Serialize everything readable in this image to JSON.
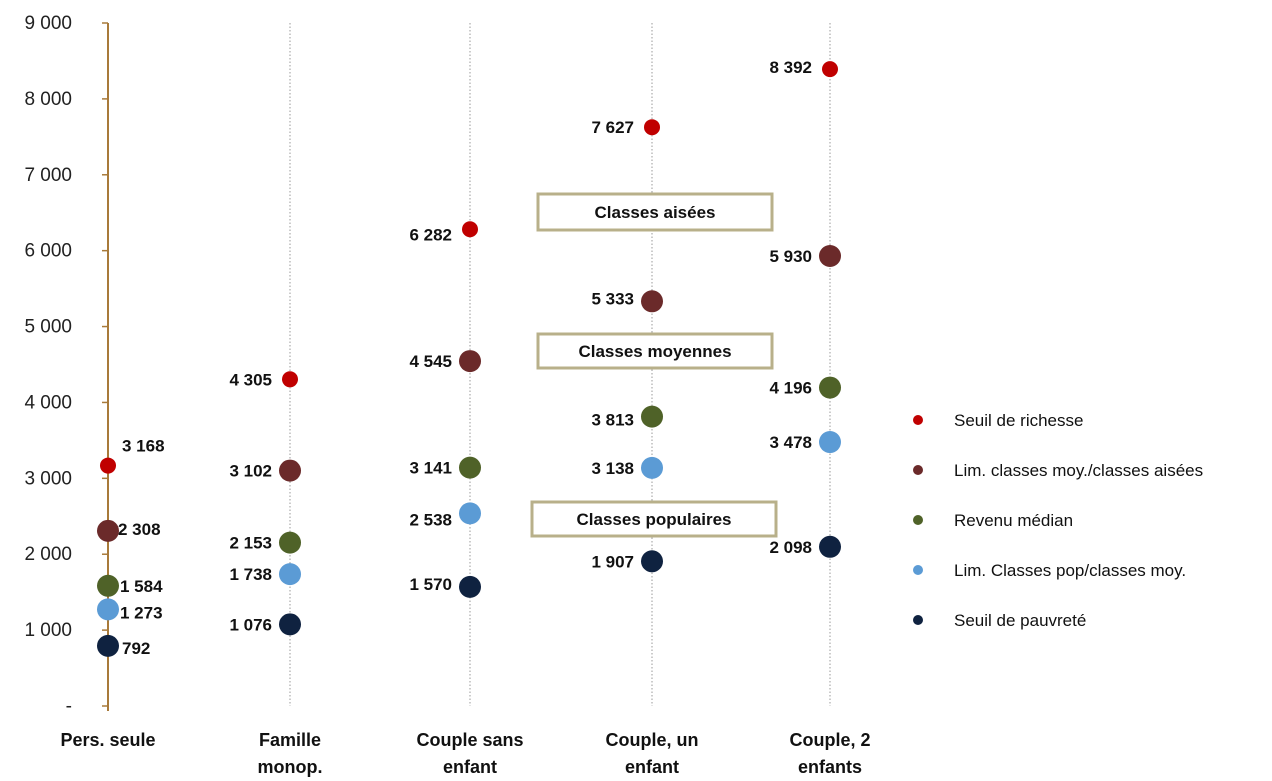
{
  "chart_data": {
    "type": "scatter",
    "title": "",
    "xlabel": "",
    "ylabel": "",
    "ylim": [
      0,
      9000
    ],
    "ytick_values": [
      0,
      1000,
      2000,
      3000,
      4000,
      5000,
      6000,
      7000,
      8000,
      9000
    ],
    "ytick_labels": [
      "-",
      "1 000",
      "2 000",
      "3 000",
      "4 000",
      "5 000",
      "6 000",
      "7 000",
      "8 000",
      "9 000"
    ],
    "grid": "vertical dotted lines at each category",
    "legend_position": "right",
    "categories": [
      [
        "Pers. seule"
      ],
      [
        "Famille",
        "monop."
      ],
      [
        "Couple sans",
        "enfant"
      ],
      [
        "Couple, un",
        "enfant"
      ],
      [
        "Couple, 2",
        "enfants"
      ]
    ],
    "series": [
      {
        "name": "Seuil de richesse",
        "color": "#c00000",
        "values": [
          3168,
          4305,
          6282,
          7627,
          8392
        ],
        "labels": [
          "3 168",
          "4 305",
          "6 282",
          "7 627",
          "8 392"
        ]
      },
      {
        "name": "Lim. classes moy./classes aisées",
        "color": "#6b2a2a",
        "values": [
          2308,
          3102,
          4545,
          5333,
          5930
        ],
        "labels": [
          "2 308",
          "3 102",
          "4 545",
          "5 333",
          "5 930"
        ]
      },
      {
        "name": "Revenu médian",
        "color": "#4f6228",
        "values": [
          1584,
          2153,
          3141,
          3813,
          4196
        ],
        "labels": [
          "1 584",
          "2 153",
          "3 141",
          "3 813",
          "4 196"
        ]
      },
      {
        "name": "Lim. Classes pop/classes moy.",
        "color": "#5b9bd5",
        "values": [
          1273,
          1738,
          2538,
          3138,
          3478
        ],
        "labels": [
          "1 273",
          "1 738",
          "2 538",
          "3 138",
          "3 478"
        ]
      },
      {
        "name": "Seuil de pauvreté",
        "color": "#0f2240",
        "values": [
          792,
          1076,
          1570,
          1907,
          2098
        ],
        "labels": [
          "792",
          "1 076",
          "1 570",
          "1 907",
          "2 098"
        ]
      }
    ],
    "annotations": [
      "Classes aisées",
      "Classes moyennes",
      "Classes populaires"
    ],
    "axis_color": "#a87a3a",
    "band_border_color": "#b8b08a"
  }
}
